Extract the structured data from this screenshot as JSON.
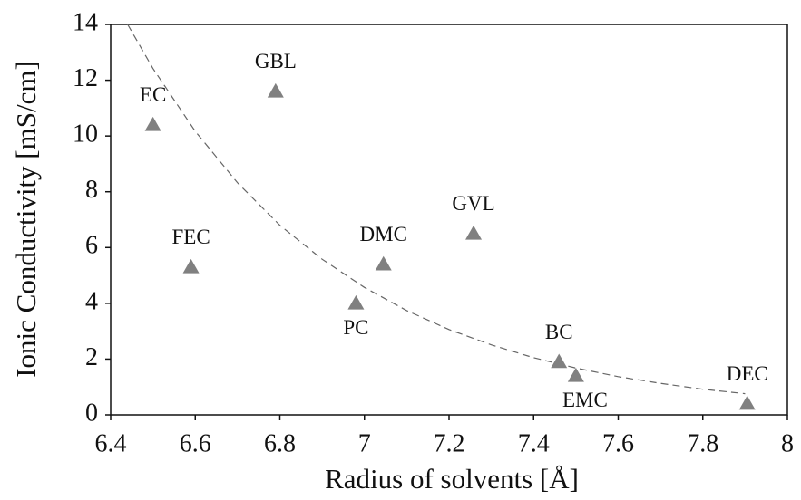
{
  "chart_data": {
    "type": "scatter",
    "x_label": "Radius of solvents [Å]",
    "y_label": "Ionic Conductivity [mS/cm]",
    "categories": [
      "EC",
      "GBL",
      "FEC",
      "PC",
      "DMC",
      "GVL",
      "BC",
      "EMC",
      "DEC"
    ],
    "x": [
      6.5,
      6.79,
      6.59,
      6.98,
      7.045,
      7.258,
      7.46,
      7.5,
      7.905
    ],
    "values": [
      10.4,
      11.6,
      5.3,
      4.0,
      5.4,
      6.5,
      1.9,
      1.4,
      0.4
    ],
    "color": "#808080",
    "trendline": {
      "x": [
        6.44,
        6.5,
        6.6,
        6.7,
        6.8,
        6.9,
        7.0,
        7.1,
        7.2,
        7.3,
        7.4,
        7.5,
        7.6,
        7.7,
        7.8,
        7.9
      ],
      "values": [
        14,
        12.42,
        10.17,
        8.32,
        6.8,
        5.58,
        4.57,
        3.74,
        3.06,
        2.51,
        2.05,
        1.68,
        1.37,
        1.13,
        0.92,
        0.76
      ],
      "color": "#666666",
      "dashed": true
    },
    "xlim": [
      6.4,
      8
    ],
    "xticks": [
      6.4,
      6.6,
      6.8,
      7,
      7.2,
      7.4,
      7.6,
      7.8,
      8
    ],
    "ylim": [
      0,
      14
    ],
    "yticks": [
      0,
      2,
      4,
      6,
      8,
      10,
      12,
      14
    ]
  }
}
